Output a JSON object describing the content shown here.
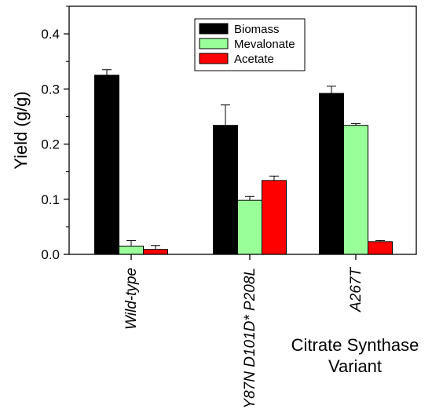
{
  "chart_data": {
    "type": "bar",
    "categories": [
      "Wild-type",
      "Y87N D101D* P208L",
      "A267T"
    ],
    "series": [
      {
        "name": "Biomass",
        "color": "#000000",
        "values": [
          0.325,
          0.234,
          0.292
        ],
        "errors": [
          0.01,
          0.037,
          0.013
        ]
      },
      {
        "name": "Mevalonate",
        "color": "#99ff99",
        "values": [
          0.015,
          0.098,
          0.234
        ],
        "errors": [
          0.01,
          0.007,
          0.003
        ]
      },
      {
        "name": "Acetate",
        "color": "#ff0000",
        "values": [
          0.009,
          0.134,
          0.023
        ],
        "errors": [
          0.007,
          0.008,
          0.002
        ]
      }
    ],
    "ylabel": "Yield (g/g)",
    "xlabel": "Citrate Synthase Variant",
    "ylim": [
      0,
      0.45
    ],
    "yticks": [
      "0.0",
      "0.1",
      "0.2",
      "0.3",
      "0.4"
    ],
    "legend_position": "top-center",
    "grid": false
  }
}
